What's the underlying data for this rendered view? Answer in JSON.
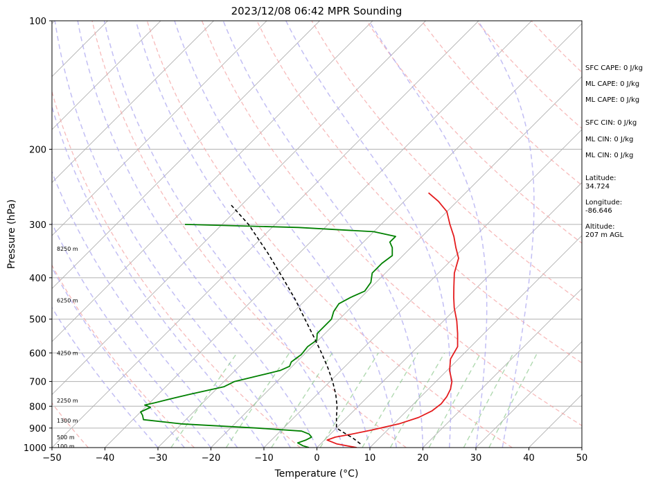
{
  "chart_data": {
    "type": "line",
    "title": "2023/12/08 06:42 MPR Sounding",
    "xlabel": "Temperature (°C)",
    "ylabel": "Pressure (hPa)",
    "xlim": [
      -50,
      50
    ],
    "ylim": [
      1000,
      100
    ],
    "y_scale": "log",
    "grid": true,
    "x_ticks": [
      -50,
      -40,
      -30,
      -20,
      -10,
      0,
      10,
      20,
      30,
      40,
      50
    ],
    "y_ticks": [
      100,
      200,
      300,
      400,
      500,
      600,
      700,
      800,
      900,
      1000
    ],
    "skew": "temperature lines slanted 45°",
    "series": [
      {
        "color": "#e41a1c",
        "points": [
          [
            1000,
            7.5
          ],
          [
            980,
            3.0
          ],
          [
            960,
            0.5
          ],
          [
            945,
            1.5
          ],
          [
            930,
            4.0
          ],
          [
            910,
            7.0
          ],
          [
            880,
            11.0
          ],
          [
            850,
            13.5
          ],
          [
            820,
            14.8
          ],
          [
            790,
            15.2
          ],
          [
            760,
            14.9
          ],
          [
            730,
            14.2
          ],
          [
            700,
            13.0
          ],
          [
            660,
            10.5
          ],
          [
            620,
            8.5
          ],
          [
            580,
            7.5
          ],
          [
            540,
            5.0
          ],
          [
            505,
            2.5
          ],
          [
            470,
            -0.5
          ],
          [
            445,
            -2.5
          ],
          [
            420,
            -4.5
          ],
          [
            390,
            -7.0
          ],
          [
            360,
            -9.0
          ],
          [
            340,
            -11.5
          ],
          [
            320,
            -14.0
          ],
          [
            300,
            -17.0
          ],
          [
            280,
            -20.0
          ],
          [
            265,
            -23.5
          ],
          [
            253,
            -27.0
          ]
        ]
      },
      {
        "color": "#008000",
        "points": [
          [
            1000,
            -1.5
          ],
          [
            990,
            -3.0
          ],
          [
            975,
            -4.5
          ],
          [
            960,
            -3.5
          ],
          [
            945,
            -3.0
          ],
          [
            930,
            -4.0
          ],
          [
            915,
            -6.0
          ],
          [
            900,
            -15.0
          ],
          [
            880,
            -30.0
          ],
          [
            860,
            -38.0
          ],
          [
            840,
            -39.0
          ],
          [
            825,
            -40.0
          ],
          [
            805,
            -39.0
          ],
          [
            795,
            -40.5
          ],
          [
            785,
            -39.0
          ],
          [
            770,
            -37.0
          ],
          [
            750,
            -34.0
          ],
          [
            720,
            -29.0
          ],
          [
            700,
            -28.0
          ],
          [
            675,
            -24.0
          ],
          [
            660,
            -21.5
          ],
          [
            645,
            -20.5
          ],
          [
            630,
            -21.0
          ],
          [
            605,
            -20.5
          ],
          [
            580,
            -20.8
          ],
          [
            560,
            -20.3
          ],
          [
            540,
            -21.5
          ],
          [
            520,
            -21.5
          ],
          [
            500,
            -21.5
          ],
          [
            480,
            -22.5
          ],
          [
            460,
            -23.0
          ],
          [
            445,
            -22.0
          ],
          [
            430,
            -20.5
          ],
          [
            410,
            -21.0
          ],
          [
            390,
            -22.5
          ],
          [
            370,
            -22.5
          ],
          [
            355,
            -22.0
          ],
          [
            340,
            -23.5
          ],
          [
            330,
            -25.0
          ],
          [
            320,
            -25.0
          ],
          [
            312,
            -30.0
          ],
          [
            305,
            -45.0
          ],
          [
            300,
            -67.0
          ]
        ]
      },
      {
        "color": "#000000",
        "style": "dashed",
        "points": [
          [
            980,
            7.5
          ],
          [
            950,
            5.0
          ],
          [
            920,
            2.0
          ],
          [
            900,
            0.0
          ],
          [
            850,
            -2.0
          ],
          [
            800,
            -4.0
          ],
          [
            750,
            -6.5
          ],
          [
            700,
            -9.5
          ],
          [
            650,
            -13.0
          ],
          [
            600,
            -17.0
          ],
          [
            550,
            -21.5
          ],
          [
            500,
            -26.5
          ],
          [
            450,
            -32.0
          ],
          [
            400,
            -38.5
          ],
          [
            350,
            -46.0
          ],
          [
            300,
            -55.0
          ],
          [
            270,
            -62.0
          ]
        ]
      }
    ],
    "height_labels": [
      {
        "label": "100 m",
        "p": 993
      },
      {
        "label": "500 m",
        "p": 946
      },
      {
        "label": "1300 m",
        "p": 865
      },
      {
        "label": "2250 m",
        "p": 775
      },
      {
        "label": "4250 m",
        "p": 600
      },
      {
        "label": "6250 m",
        "p": 452
      },
      {
        "label": "8250 m",
        "p": 342
      }
    ],
    "dry_adiabats_K": [
      230,
      250,
      270,
      290,
      310,
      330,
      350,
      370,
      390,
      410,
      430,
      450,
      470,
      490,
      510
    ],
    "moist_adiabats_C": [
      -30,
      -25,
      -20,
      -15,
      -10,
      -5,
      0,
      5,
      10,
      15,
      20,
      25,
      30,
      35
    ],
    "mixing_ratios_gkg": [
      0.4,
      1,
      2,
      4,
      7,
      10,
      16,
      24,
      32
    ]
  },
  "sidebar": {
    "sfc_cape": "SFC CAPE: 0 J/kg",
    "ml_cape_1": "ML CAPE: 0 J/kg",
    "ml_cape_2": "ML CAPE: 0 J/kg",
    "sfc_cin": "SFC CIN: 0 J/kg",
    "ml_cin_1": "ML CIN: 0 J/kg",
    "ml_cin_2": "ML CIN: 0 J/kg",
    "latitude_label": "Latitude:",
    "latitude_value": "34.724",
    "longitude_label": "Longitude:",
    "longitude_value": "-86.646",
    "altitude_label": "Altitude:",
    "altitude_value": "207 m AGL"
  }
}
